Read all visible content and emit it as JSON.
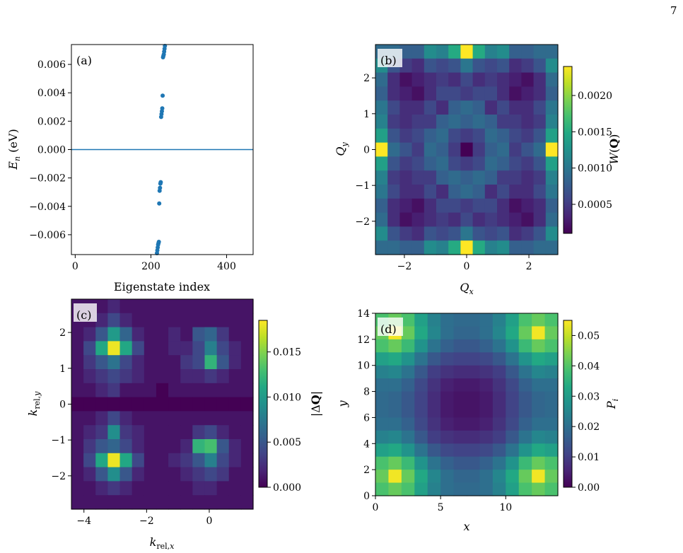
{
  "page_number": "7",
  "colors": {
    "dots": "#1f77b4",
    "zero_line": "#1f77b4",
    "colormap": "viridis"
  },
  "chart_data": [
    {
      "panel": "(a)",
      "type": "scatter",
      "xlabel": "Eigenstate index",
      "ylabel": "E_n (eV)",
      "xlim": [
        -10,
        470
      ],
      "ylim": [
        -0.0074,
        0.0074
      ],
      "xticks": [
        0,
        200,
        400
      ],
      "yticks": [
        -0.006,
        -0.004,
        -0.002,
        0.0,
        0.002,
        0.004,
        0.006
      ],
      "ytick_labels": [
        "−0.006",
        "−0.004",
        "−0.002",
        "0.000",
        "0.002",
        "0.004",
        "0.006"
      ],
      "hline": 0,
      "points": [
        [
          216,
          -0.0073
        ],
        [
          217,
          -0.0071
        ],
        [
          218,
          -0.0069
        ],
        [
          219,
          -0.0067
        ],
        [
          220,
          -0.0066
        ],
        [
          221,
          -0.0065
        ],
        [
          222,
          -0.0038
        ],
        [
          223,
          -0.0029
        ],
        [
          224,
          -0.0027
        ],
        [
          225,
          -0.0024
        ],
        [
          226,
          -0.0023
        ],
        [
          227,
          0.0023
        ],
        [
          228,
          0.0025
        ],
        [
          229,
          0.0027
        ],
        [
          230,
          0.0029
        ],
        [
          231,
          0.0038
        ],
        [
          232,
          0.0065
        ],
        [
          233,
          0.0066
        ],
        [
          234,
          0.0067
        ],
        [
          235,
          0.0069
        ],
        [
          236,
          0.0071
        ],
        [
          237,
          0.0073
        ]
      ]
    },
    {
      "panel": "(b)",
      "type": "heatmap",
      "xlabel": "Q_x",
      "ylabel": "Q_y",
      "colorbar_label": "W(Q)",
      "extent": [
        -2.93,
        2.93,
        -2.93,
        2.93
      ],
      "xticks": [
        -2,
        0,
        2
      ],
      "yticks": [
        -2,
        -1,
        0,
        1,
        2
      ],
      "vmin": 0.0001,
      "vmax": 0.0024,
      "cbar_ticks": [
        0.0005,
        0.001,
        0.0015,
        0.002
      ],
      "cbar_tick_labels": [
        "0.0005",
        "0.0010",
        "0.0015",
        "0.0020"
      ],
      "grid_size": [
        15,
        15
      ],
      "rows": [
        [
          0.0009,
          0.0009,
          0.0008,
          0.0008,
          0.0012,
          0.0011,
          0.0015,
          0.0024,
          0.0015,
          0.0011,
          0.0012,
          0.0008,
          0.0008,
          0.0009,
          0.0009
        ],
        [
          0.0012,
          0.0007,
          0.0005,
          0.0004,
          0.0007,
          0.0006,
          0.0007,
          0.001,
          0.0007,
          0.0006,
          0.0007,
          0.0004,
          0.0005,
          0.0007,
          0.0012
        ],
        [
          0.0009,
          0.0004,
          0.0002,
          0.0003,
          0.0004,
          0.0005,
          0.0004,
          0.0006,
          0.0004,
          0.0005,
          0.0004,
          0.0003,
          0.0002,
          0.0004,
          0.0009
        ],
        [
          0.0008,
          0.0004,
          0.0003,
          0.0002,
          0.0004,
          0.0006,
          0.0006,
          0.0005,
          0.0006,
          0.0006,
          0.0004,
          0.0002,
          0.0003,
          0.0004,
          0.0008
        ],
        [
          0.001,
          0.0006,
          0.0004,
          0.0004,
          0.0006,
          0.0004,
          0.0008,
          0.0009,
          0.0008,
          0.0004,
          0.0006,
          0.0004,
          0.0004,
          0.0006,
          0.001
        ],
        [
          0.0011,
          0.0005,
          0.0004,
          0.0005,
          0.0005,
          0.0008,
          0.0009,
          0.0008,
          0.0009,
          0.0008,
          0.0005,
          0.0005,
          0.0004,
          0.0005,
          0.0011
        ],
        [
          0.0014,
          0.0007,
          0.0005,
          0.0006,
          0.0008,
          0.0009,
          0.0006,
          0.0005,
          0.0006,
          0.0009,
          0.0008,
          0.0006,
          0.0005,
          0.0007,
          0.0014
        ],
        [
          0.0024,
          0.0009,
          0.0007,
          0.0005,
          0.0009,
          0.0008,
          0.0005,
          0.0001,
          0.0005,
          0.0008,
          0.0009,
          0.0005,
          0.0007,
          0.0009,
          0.0024
        ],
        [
          0.0014,
          0.0007,
          0.0005,
          0.0006,
          0.0008,
          0.0009,
          0.0006,
          0.0005,
          0.0006,
          0.0009,
          0.0008,
          0.0006,
          0.0005,
          0.0007,
          0.0014
        ],
        [
          0.0011,
          0.0005,
          0.0004,
          0.0005,
          0.0005,
          0.0008,
          0.0009,
          0.0008,
          0.0009,
          0.0008,
          0.0005,
          0.0005,
          0.0004,
          0.0005,
          0.0011
        ],
        [
          0.001,
          0.0006,
          0.0004,
          0.0004,
          0.0006,
          0.0004,
          0.0008,
          0.0009,
          0.0008,
          0.0004,
          0.0006,
          0.0004,
          0.0004,
          0.0006,
          0.001
        ],
        [
          0.0008,
          0.0004,
          0.0003,
          0.0002,
          0.0004,
          0.0006,
          0.0006,
          0.0005,
          0.0006,
          0.0006,
          0.0004,
          0.0002,
          0.0003,
          0.0004,
          0.0008
        ],
        [
          0.0009,
          0.0004,
          0.0002,
          0.0003,
          0.0004,
          0.0005,
          0.0004,
          0.0006,
          0.0004,
          0.0005,
          0.0004,
          0.0003,
          0.0002,
          0.0004,
          0.0009
        ],
        [
          0.0012,
          0.0007,
          0.0005,
          0.0004,
          0.0007,
          0.0006,
          0.0007,
          0.001,
          0.0007,
          0.0006,
          0.0007,
          0.0004,
          0.0005,
          0.0007,
          0.0012
        ],
        [
          0.0009,
          0.0009,
          0.0008,
          0.0008,
          0.0012,
          0.0011,
          0.0015,
          0.0024,
          0.0015,
          0.0011,
          0.0012,
          0.0008,
          0.0008,
          0.0009,
          0.0009
        ]
      ]
    },
    {
      "panel": "(c)",
      "type": "heatmap",
      "xlabel": "k_rel,x",
      "ylabel": "k_rel,y",
      "colorbar_label": "|ΔQ|",
      "extent": [
        -4.4,
        1.4,
        -2.93,
        2.93
      ],
      "xticks": [
        -4,
        -2,
        0
      ],
      "yticks": [
        -2,
        -1,
        0,
        1,
        2
      ],
      "vmin": 0,
      "vmax": 0.0185,
      "cbar_ticks": [
        0.0,
        0.005,
        0.01,
        0.015
      ],
      "cbar_tick_labels": [
        "0.000",
        "0.005",
        "0.010",
        "0.015"
      ],
      "grid_size": [
        15,
        15
      ],
      "rows": [
        [
          0.001,
          0.001,
          0.001,
          0.002,
          0.001,
          0.001,
          0.001,
          0.001,
          0.001,
          0.001,
          0.001,
          0.001,
          0.001,
          0.001,
          0.001
        ],
        [
          0.001,
          0.001,
          0.002,
          0.004,
          0.002,
          0.001,
          0.001,
          0.001,
          0.001,
          0.001,
          0.001,
          0.001,
          0.001,
          0.001,
          0.001
        ],
        [
          0.001,
          0.002,
          0.005,
          0.01,
          0.006,
          0.002,
          0.001,
          0.001,
          0.002,
          0.001,
          0.005,
          0.006,
          0.003,
          0.001,
          0.001
        ],
        [
          0.001,
          0.004,
          0.011,
          0.018,
          0.011,
          0.004,
          0.001,
          0.001,
          0.002,
          0.002,
          0.004,
          0.008,
          0.004,
          0.002,
          0.001
        ],
        [
          0.001,
          0.003,
          0.005,
          0.007,
          0.004,
          0.002,
          0.001,
          0.001,
          0.001,
          0.003,
          0.004,
          0.012,
          0.005,
          0.002,
          0.001
        ],
        [
          0.001,
          0.002,
          0.003,
          0.004,
          0.003,
          0.002,
          0.001,
          0.001,
          0.001,
          0.002,
          0.002,
          0.003,
          0.002,
          0.001,
          0.001
        ],
        [
          0.001,
          0.001,
          0.002,
          0.003,
          0.001,
          0.001,
          0.001,
          0.0,
          0.001,
          0.001,
          0.001,
          0.001,
          0.001,
          0.001,
          0.001
        ],
        [
          0.0,
          0.0,
          0.0,
          0.0,
          0.0,
          0.0,
          0.0,
          0.0,
          0.0,
          0.0,
          0.0,
          0.0,
          0.0,
          0.0,
          0.0
        ],
        [
          0.001,
          0.001,
          0.002,
          0.004,
          0.002,
          0.001,
          0.001,
          0.001,
          0.001,
          0.001,
          0.001,
          0.001,
          0.001,
          0.001,
          0.001
        ],
        [
          0.001,
          0.002,
          0.003,
          0.009,
          0.003,
          0.002,
          0.001,
          0.001,
          0.001,
          0.001,
          0.003,
          0.004,
          0.002,
          0.001,
          0.001
        ],
        [
          0.001,
          0.003,
          0.005,
          0.006,
          0.004,
          0.002,
          0.001,
          0.001,
          0.001,
          0.002,
          0.012,
          0.013,
          0.005,
          0.002,
          0.001
        ],
        [
          0.001,
          0.004,
          0.011,
          0.018,
          0.011,
          0.004,
          0.001,
          0.001,
          0.002,
          0.003,
          0.005,
          0.008,
          0.004,
          0.002,
          0.001
        ],
        [
          0.001,
          0.002,
          0.005,
          0.009,
          0.005,
          0.002,
          0.001,
          0.001,
          0.001,
          0.002,
          0.003,
          0.004,
          0.003,
          0.001,
          0.001
        ],
        [
          0.001,
          0.001,
          0.002,
          0.003,
          0.002,
          0.001,
          0.001,
          0.001,
          0.001,
          0.001,
          0.002,
          0.002,
          0.001,
          0.001,
          0.001
        ],
        [
          0.001,
          0.001,
          0.001,
          0.001,
          0.001,
          0.001,
          0.001,
          0.001,
          0.001,
          0.001,
          0.001,
          0.001,
          0.001,
          0.001,
          0.001
        ]
      ]
    },
    {
      "panel": "(d)",
      "type": "heatmap",
      "xlabel": "x",
      "ylabel": "y",
      "colorbar_label": "P_i",
      "extent": [
        0,
        14,
        0,
        14
      ],
      "xticks": [
        0,
        5,
        10
      ],
      "yticks": [
        0,
        2,
        4,
        6,
        8,
        10,
        12,
        14
      ],
      "vmin": 0,
      "vmax": 0.055,
      "cbar_ticks": [
        0.0,
        0.01,
        0.02,
        0.03,
        0.04,
        0.05
      ],
      "cbar_tick_labels": [
        "0.00",
        "0.01",
        "0.02",
        "0.03",
        "0.04",
        "0.05"
      ],
      "grid_size": [
        14,
        14
      ],
      "rows": [
        [
          0.039,
          0.042,
          0.039,
          0.031,
          0.024,
          0.02,
          0.019,
          0.019,
          0.02,
          0.024,
          0.031,
          0.039,
          0.042,
          0.039
        ],
        [
          0.042,
          0.054,
          0.042,
          0.033,
          0.025,
          0.02,
          0.018,
          0.018,
          0.02,
          0.025,
          0.033,
          0.042,
          0.054,
          0.042
        ],
        [
          0.039,
          0.042,
          0.037,
          0.028,
          0.021,
          0.017,
          0.015,
          0.015,
          0.017,
          0.021,
          0.028,
          0.037,
          0.042,
          0.039
        ],
        [
          0.031,
          0.033,
          0.028,
          0.021,
          0.015,
          0.012,
          0.011,
          0.011,
          0.012,
          0.015,
          0.021,
          0.028,
          0.033,
          0.031
        ],
        [
          0.024,
          0.025,
          0.021,
          0.015,
          0.01,
          0.008,
          0.007,
          0.007,
          0.008,
          0.01,
          0.015,
          0.021,
          0.025,
          0.024
        ],
        [
          0.02,
          0.02,
          0.017,
          0.012,
          0.008,
          0.005,
          0.004,
          0.004,
          0.005,
          0.008,
          0.012,
          0.017,
          0.02,
          0.02
        ],
        [
          0.019,
          0.018,
          0.015,
          0.011,
          0.007,
          0.004,
          0.003,
          0.003,
          0.004,
          0.007,
          0.011,
          0.015,
          0.018,
          0.019
        ],
        [
          0.019,
          0.018,
          0.015,
          0.011,
          0.007,
          0.004,
          0.003,
          0.003,
          0.004,
          0.007,
          0.011,
          0.015,
          0.018,
          0.019
        ],
        [
          0.02,
          0.02,
          0.017,
          0.012,
          0.008,
          0.005,
          0.004,
          0.004,
          0.005,
          0.008,
          0.012,
          0.017,
          0.02,
          0.02
        ],
        [
          0.024,
          0.025,
          0.021,
          0.015,
          0.01,
          0.008,
          0.007,
          0.007,
          0.008,
          0.01,
          0.015,
          0.021,
          0.025,
          0.024
        ],
        [
          0.031,
          0.033,
          0.028,
          0.021,
          0.015,
          0.012,
          0.011,
          0.011,
          0.012,
          0.015,
          0.021,
          0.028,
          0.033,
          0.031
        ],
        [
          0.039,
          0.042,
          0.037,
          0.028,
          0.021,
          0.017,
          0.015,
          0.015,
          0.017,
          0.021,
          0.028,
          0.037,
          0.042,
          0.039
        ],
        [
          0.042,
          0.054,
          0.042,
          0.033,
          0.025,
          0.02,
          0.018,
          0.018,
          0.02,
          0.025,
          0.033,
          0.042,
          0.054,
          0.042
        ],
        [
          0.039,
          0.042,
          0.039,
          0.031,
          0.024,
          0.02,
          0.019,
          0.019,
          0.02,
          0.024,
          0.031,
          0.039,
          0.042,
          0.039
        ]
      ]
    }
  ]
}
